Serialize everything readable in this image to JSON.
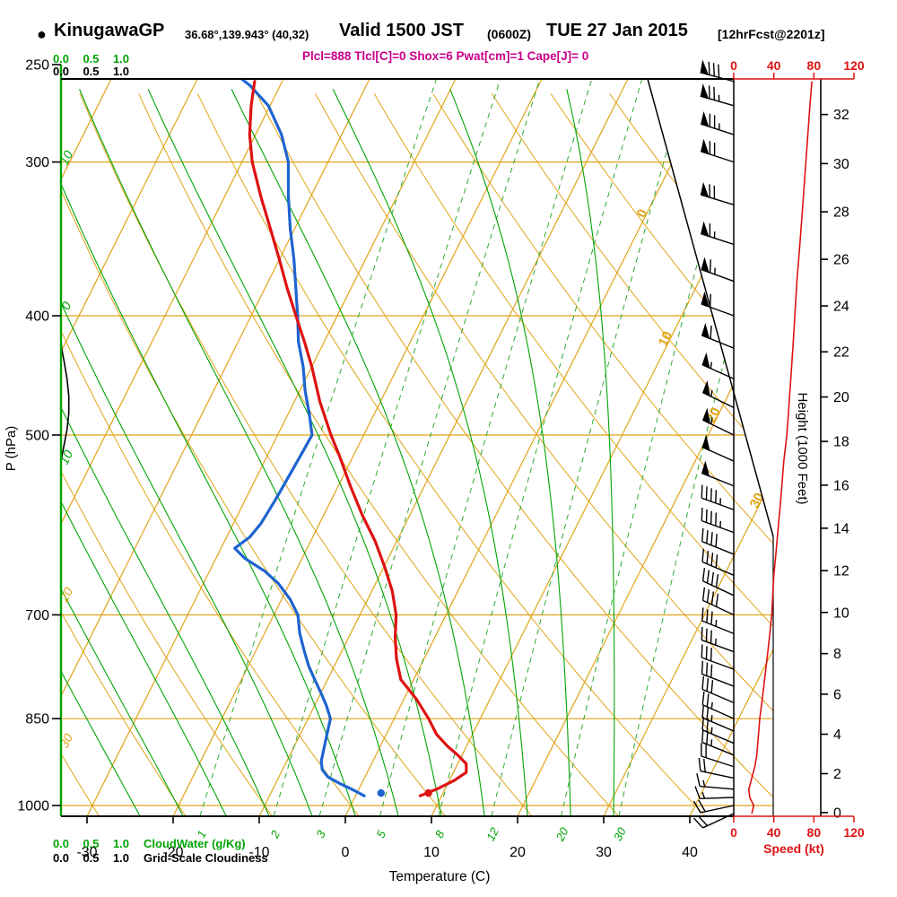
{
  "header": {
    "bullet": "●",
    "station": "KinugawaGP",
    "coords": "36.68°,139.943° (40,32)",
    "valid_main": "Valid 1500 JST",
    "valid_z": "(0600Z)",
    "valid_date": "TUE 27 Jan 2015",
    "forecast_tag": "[12hrFcst@2201z]",
    "params": "Plcl=888 Tlcl[C]=0 Shox=6 Pwat[cm]=1 Cape[J]= 0"
  },
  "colors": {
    "orange": "#E0A418",
    "green": "#00A405",
    "green_dashed": "#2FA82F",
    "red": "#DE1212",
    "blue": "#1E64D0",
    "magenta": "#C8008C",
    "black": "#000000"
  },
  "chart_data": {
    "type": "line",
    "variant": "skew-t-log-p-sounding",
    "title": "KinugawaGP 36.68°,139.943° (40,32) Valid 1500 JST (0600Z) TUE 27 Jan 2015 [12hrFcst@2201z]",
    "axes": {
      "pressure": {
        "label": "P (hPa)",
        "scale": "log",
        "range": [
          257,
          1020
        ],
        "ticks": [
          250,
          300,
          400,
          500,
          700,
          850,
          1000
        ]
      },
      "temperature": {
        "label": "Temperature (C)",
        "skew_deg": 45,
        "ticks": [
          -30,
          -20,
          -10,
          0,
          10,
          20,
          30,
          40
        ]
      },
      "height": {
        "label": "Height (1000 Feet)",
        "ticks": [
          0,
          2,
          4,
          6,
          8,
          10,
          12,
          14,
          16,
          18,
          20,
          22,
          24,
          26,
          28,
          30,
          32
        ]
      },
      "speed": {
        "label": "Speed (kt)",
        "ticks": [
          0,
          40,
          80,
          120
        ]
      },
      "cloudwater": {
        "label": "CloudWater (g/Kg)",
        "ticks": [
          "0.0",
          "0.5",
          "1.0"
        ]
      },
      "cloudiness": {
        "label": "Grid-Scale Cloudiness",
        "ticks": [
          "0.0",
          "0.5",
          "1.0"
        ]
      }
    },
    "background": {
      "isobars": [
        300,
        400,
        500,
        700,
        850,
        1000
      ],
      "isotherms": {
        "min": -80,
        "max": 40,
        "step": 10
      },
      "dry_adiabats": {
        "min": -40,
        "max": 120,
        "step": 10
      },
      "moist_adiabats": [
        -25,
        -20,
        -15,
        -10,
        -5,
        0,
        5,
        10,
        15,
        20,
        25,
        30
      ],
      "mixing_ratio_lines": [
        1,
        2,
        3,
        5,
        8,
        12,
        20,
        30
      ],
      "isotherm_edge_labels": [
        0,
        10,
        20,
        30
      ],
      "left_edge_labels": [
        {
          "text": "10",
          "color": "green"
        },
        {
          "text": "0",
          "color": "green"
        },
        {
          "text": "10",
          "color": "green"
        },
        {
          "text": "20",
          "color": "orange"
        },
        {
          "text": "30",
          "color": "orange"
        }
      ],
      "mixing_ratio_labels": [
        1,
        2,
        3,
        5,
        8,
        12,
        20,
        30
      ]
    },
    "series": {
      "temperature_C": {
        "color": "red",
        "points": [
          [
            982,
            7.5
          ],
          [
            970,
            9.0
          ],
          [
            955,
            10.5
          ],
          [
            940,
            11.5
          ],
          [
            925,
            11.0
          ],
          [
            910,
            9.5
          ],
          [
            895,
            7.8
          ],
          [
            875,
            5.8
          ],
          [
            850,
            4.0
          ],
          [
            820,
            1.5
          ],
          [
            790,
            -1.5
          ],
          [
            760,
            -3.2
          ],
          [
            730,
            -4.6
          ],
          [
            700,
            -5.8
          ],
          [
            670,
            -7.6
          ],
          [
            640,
            -9.9
          ],
          [
            610,
            -12.5
          ],
          [
            580,
            -15.6
          ],
          [
            550,
            -18.6
          ],
          [
            520,
            -21.6
          ],
          [
            500,
            -23.8
          ],
          [
            470,
            -27.0
          ],
          [
            440,
            -30.0
          ],
          [
            420,
            -32.3
          ],
          [
            400,
            -34.8
          ],
          [
            380,
            -37.4
          ],
          [
            360,
            -40.0
          ],
          [
            340,
            -42.8
          ],
          [
            320,
            -45.8
          ],
          [
            300,
            -48.8
          ],
          [
            285,
            -50.7
          ],
          [
            270,
            -52.2
          ],
          [
            258,
            -53.2
          ]
        ]
      },
      "dewpoint_C": {
        "color": "blue",
        "points": [
          [
            982,
            1.0
          ],
          [
            972,
            -0.5
          ],
          [
            960,
            -2.5
          ],
          [
            948,
            -4.3
          ],
          [
            935,
            -5.4
          ],
          [
            920,
            -6.0
          ],
          [
            905,
            -6.3
          ],
          [
            890,
            -6.6
          ],
          [
            870,
            -7.0
          ],
          [
            850,
            -7.4
          ],
          [
            830,
            -8.6
          ],
          [
            810,
            -10.0
          ],
          [
            790,
            -11.5
          ],
          [
            770,
            -13.0
          ],
          [
            750,
            -14.3
          ],
          [
            725,
            -15.9
          ],
          [
            700,
            -17.2
          ],
          [
            680,
            -19.0
          ],
          [
            660,
            -21.3
          ],
          [
            645,
            -23.6
          ],
          [
            630,
            -26.6
          ],
          [
            618,
            -28.4
          ],
          [
            605,
            -27.3
          ],
          [
            590,
            -26.8
          ],
          [
            565,
            -26.5
          ],
          [
            540,
            -26.3
          ],
          [
            515,
            -26.1
          ],
          [
            500,
            -26.0
          ],
          [
            480,
            -27.6
          ],
          [
            460,
            -29.4
          ],
          [
            440,
            -31.0
          ],
          [
            420,
            -33.0
          ],
          [
            400,
            -34.6
          ],
          [
            380,
            -36.4
          ],
          [
            360,
            -38.3
          ],
          [
            340,
            -40.5
          ],
          [
            320,
            -42.6
          ],
          [
            300,
            -44.6
          ],
          [
            285,
            -47.0
          ],
          [
            270,
            -50.2
          ],
          [
            260,
            -53.5
          ],
          [
            253,
            -56.5
          ]
        ]
      },
      "surface_temperature_dot": {
        "p_hPa": 977,
        "t_C": 8.3
      },
      "surface_dewpoint_dot": {
        "p_hPa": 977,
        "t_C": 2.8
      },
      "wind_profile": {
        "units": [
          "hPa",
          "kt",
          "deg_from"
        ],
        "points": [
          [
            1015,
            18,
            245
          ],
          [
            1000,
            20,
            258
          ],
          [
            985,
            16,
            268
          ],
          [
            970,
            15,
            275
          ],
          [
            950,
            18,
            282
          ],
          [
            930,
            21,
            288
          ],
          [
            910,
            23,
            292
          ],
          [
            890,
            24,
            293
          ],
          [
            870,
            25,
            293
          ],
          [
            850,
            26,
            294
          ],
          [
            825,
            28,
            293
          ],
          [
            800,
            30,
            291
          ],
          [
            775,
            32,
            290
          ],
          [
            750,
            34,
            290
          ],
          [
            725,
            36,
            292
          ],
          [
            700,
            38,
            295
          ],
          [
            675,
            39,
            295
          ],
          [
            650,
            40,
            293
          ],
          [
            625,
            42,
            292
          ],
          [
            600,
            44,
            290
          ],
          [
            575,
            46,
            290
          ],
          [
            550,
            48,
            292
          ],
          [
            525,
            50,
            294
          ],
          [
            500,
            53,
            296
          ],
          [
            475,
            55,
            296
          ],
          [
            450,
            57,
            294
          ],
          [
            425,
            59,
            292
          ],
          [
            400,
            61,
            290
          ],
          [
            375,
            63,
            290
          ],
          [
            350,
            66,
            288
          ],
          [
            325,
            69,
            287
          ],
          [
            300,
            72,
            288
          ],
          [
            285,
            74,
            288
          ],
          [
            270,
            76,
            286
          ],
          [
            258,
            78,
            285
          ]
        ]
      },
      "cloudiness_profile": {
        "points": [
          [
            525,
            0
          ],
          [
            510,
            0.05
          ],
          [
            495,
            0.1
          ],
          [
            480,
            0.13
          ],
          [
            465,
            0.13
          ],
          [
            450,
            0.1
          ],
          [
            435,
            0.05
          ],
          [
            425,
            0.01
          ],
          [
            418,
            0
          ]
        ]
      }
    }
  }
}
